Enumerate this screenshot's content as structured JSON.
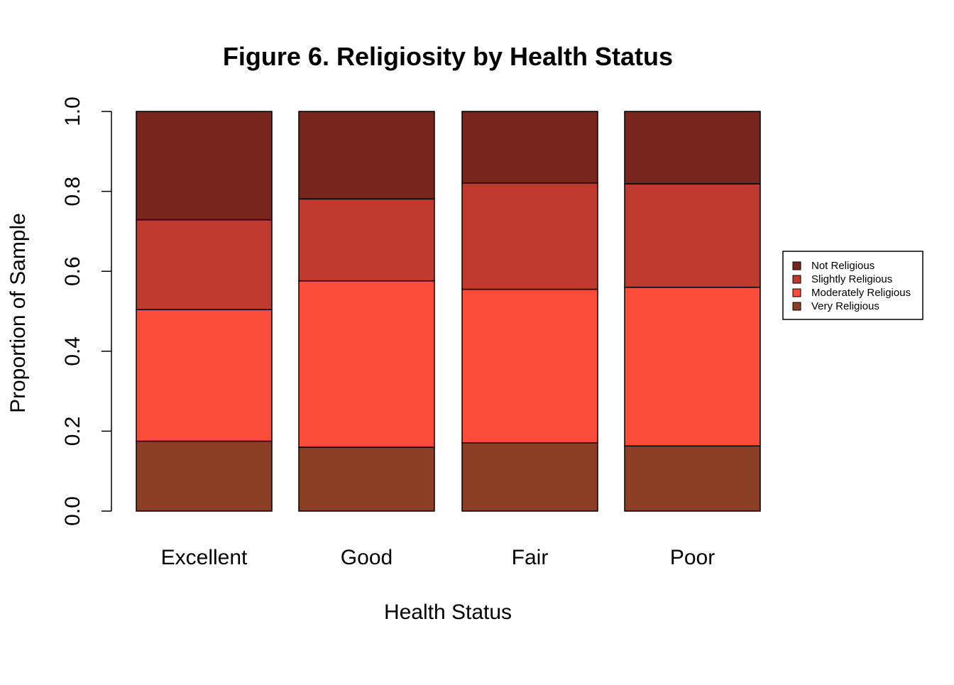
{
  "chart_data": {
    "type": "bar",
    "stacked": true,
    "title": "Figure 6. Religiosity by Health Status",
    "xlabel": "Health Status",
    "ylabel": "Proportion of Sample",
    "ylim": [
      0,
      1
    ],
    "yticks": [
      "0.0",
      "0.2",
      "0.4",
      "0.6",
      "0.8",
      "1.0"
    ],
    "ytick_values": [
      0,
      0.2,
      0.4,
      0.6,
      0.8,
      1.0
    ],
    "grid": false,
    "legend_position": "right",
    "categories": [
      "Excellent",
      "Good",
      "Fair",
      "Poor"
    ],
    "series": [
      {
        "name": "Very Religious",
        "color": "#8b3e23",
        "values": [
          0.175,
          0.16,
          0.171,
          0.163
        ]
      },
      {
        "name": "Moderately Religious",
        "color": "#fe4c3b",
        "values": [
          0.329,
          0.416,
          0.384,
          0.397
        ]
      },
      {
        "name": "Slightly Religious",
        "color": "#c0392e",
        "values": [
          0.225,
          0.205,
          0.266,
          0.259
        ]
      },
      {
        "name": "Not Religious",
        "color": "#78251e",
        "values": [
          0.271,
          0.219,
          0.179,
          0.181
        ]
      }
    ],
    "legend_order": [
      "Not Religious",
      "Slightly Religious",
      "Moderately Religious",
      "Very Religious"
    ]
  }
}
